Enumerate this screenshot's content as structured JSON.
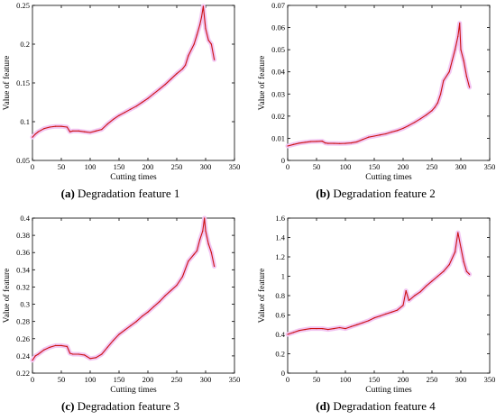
{
  "chart_data": [
    {
      "type": "line",
      "caption_letter": "(a)",
      "caption_text": "Degradation feature 1",
      "xlabel": "Cutting times",
      "ylabel": "Value of feature",
      "xlim": [
        0,
        350
      ],
      "ylim": [
        0.05,
        0.25
      ],
      "xticks": [
        "0",
        "50",
        "100",
        "150",
        "200",
        "250",
        "300",
        "350"
      ],
      "yticks": [
        "0.05",
        "0.1",
        "0.15",
        "0.2",
        "0.25"
      ],
      "grid": false,
      "line_color": "#cc1111",
      "shade_color": "#f2c6f2",
      "series": [
        {
          "x": [
            0,
            5,
            10,
            20,
            30,
            40,
            50,
            60,
            65,
            70,
            80,
            90,
            100,
            110,
            120,
            130,
            140,
            150,
            160,
            170,
            180,
            190,
            200,
            210,
            220,
            230,
            240,
            250,
            260,
            265,
            270,
            280,
            285,
            290,
            293,
            296,
            300,
            305,
            310,
            315
          ],
          "values": [
            0.08,
            0.084,
            0.087,
            0.091,
            0.093,
            0.094,
            0.094,
            0.093,
            0.087,
            0.088,
            0.088,
            0.087,
            0.086,
            0.088,
            0.09,
            0.097,
            0.103,
            0.108,
            0.112,
            0.116,
            0.12,
            0.125,
            0.13,
            0.136,
            0.142,
            0.148,
            0.155,
            0.162,
            0.168,
            0.173,
            0.185,
            0.2,
            0.212,
            0.225,
            0.235,
            0.249,
            0.22,
            0.205,
            0.2,
            0.18
          ]
        }
      ]
    },
    {
      "type": "line",
      "caption_letter": "(b)",
      "caption_text": "Degradation feature 2",
      "xlabel": "Cutting times",
      "ylabel": "Value of feature",
      "xlim": [
        0,
        350
      ],
      "ylim": [
        0,
        0.07
      ],
      "xticks": [
        "0",
        "50",
        "100",
        "150",
        "200",
        "250",
        "300",
        "350"
      ],
      "yticks": [
        "0",
        "0.01",
        "0.02",
        "0.03",
        "0.04",
        "0.05",
        "0.06",
        "0.07"
      ],
      "grid": false,
      "line_color": "#cc1111",
      "shade_color": "#f2c6f2",
      "series": [
        {
          "x": [
            0,
            10,
            20,
            30,
            40,
            50,
            60,
            65,
            70,
            80,
            90,
            100,
            110,
            120,
            130,
            140,
            150,
            160,
            170,
            180,
            190,
            200,
            210,
            220,
            230,
            240,
            250,
            255,
            260,
            265,
            270,
            280,
            285,
            290,
            295,
            298,
            300,
            305,
            310,
            315
          ],
          "values": [
            0.0065,
            0.0072,
            0.0078,
            0.0082,
            0.0085,
            0.0086,
            0.0087,
            0.0079,
            0.0077,
            0.0077,
            0.0076,
            0.0077,
            0.0079,
            0.0084,
            0.0095,
            0.0105,
            0.011,
            0.0115,
            0.012,
            0.0128,
            0.0135,
            0.0145,
            0.0158,
            0.0172,
            0.0188,
            0.0205,
            0.0225,
            0.024,
            0.026,
            0.03,
            0.036,
            0.04,
            0.045,
            0.05,
            0.056,
            0.062,
            0.05,
            0.045,
            0.038,
            0.033
          ]
        }
      ]
    },
    {
      "type": "line",
      "caption_letter": "(c)",
      "caption_text": "Degradation feature 3",
      "xlabel": "Cutting times",
      "ylabel": "Value of feature",
      "xlim": [
        0,
        350
      ],
      "ylim": [
        0.22,
        0.4
      ],
      "xticks": [
        "0",
        "50",
        "100",
        "150",
        "200",
        "250",
        "300",
        "350"
      ],
      "yticks": [
        "0.22",
        "0.24",
        "0.26",
        "0.28",
        "0.3",
        "0.32",
        "0.34",
        "0.36",
        "0.38",
        "0.4"
      ],
      "grid": false,
      "line_color": "#cc1111",
      "shade_color": "#f2c6f2",
      "series": [
        {
          "x": [
            0,
            5,
            10,
            20,
            30,
            40,
            50,
            60,
            65,
            70,
            80,
            90,
            100,
            110,
            120,
            130,
            140,
            150,
            160,
            170,
            180,
            190,
            200,
            210,
            220,
            230,
            240,
            250,
            260,
            270,
            280,
            285,
            290,
            295,
            298,
            300,
            305,
            310,
            315
          ],
          "values": [
            0.235,
            0.24,
            0.242,
            0.247,
            0.25,
            0.252,
            0.252,
            0.251,
            0.243,
            0.242,
            0.242,
            0.241,
            0.237,
            0.238,
            0.242,
            0.25,
            0.258,
            0.265,
            0.27,
            0.275,
            0.28,
            0.286,
            0.291,
            0.297,
            0.303,
            0.31,
            0.316,
            0.322,
            0.332,
            0.35,
            0.358,
            0.362,
            0.375,
            0.385,
            0.4,
            0.385,
            0.37,
            0.36,
            0.344
          ]
        }
      ]
    },
    {
      "type": "line",
      "caption_letter": "(d)",
      "caption_text": "Degradation feature 4",
      "xlabel": "Cutting times",
      "ylabel": "Value of feature",
      "xlim": [
        0,
        350
      ],
      "ylim": [
        0,
        1.6
      ],
      "xticks": [
        "0",
        "50",
        "100",
        "150",
        "200",
        "250",
        "300",
        "350"
      ],
      "yticks": [
        "0",
        "0.2",
        "0.4",
        "0.6",
        "0.8",
        "1",
        "1.2",
        "1.4",
        "1.6"
      ],
      "grid": false,
      "line_color": "#cc1111",
      "shade_color": "#f2c6f2",
      "series": [
        {
          "x": [
            0,
            10,
            20,
            30,
            40,
            50,
            60,
            70,
            80,
            90,
            100,
            110,
            120,
            130,
            140,
            150,
            160,
            170,
            180,
            190,
            200,
            205,
            210,
            220,
            230,
            240,
            250,
            260,
            270,
            280,
            290,
            295,
            300,
            305,
            310,
            315
          ],
          "values": [
            0.4,
            0.42,
            0.44,
            0.45,
            0.46,
            0.46,
            0.46,
            0.45,
            0.46,
            0.47,
            0.46,
            0.48,
            0.5,
            0.52,
            0.54,
            0.57,
            0.59,
            0.61,
            0.63,
            0.65,
            0.7,
            0.85,
            0.75,
            0.8,
            0.84,
            0.9,
            0.95,
            1.0,
            1.05,
            1.12,
            1.25,
            1.45,
            1.3,
            1.15,
            1.05,
            1.02
          ]
        }
      ]
    }
  ]
}
